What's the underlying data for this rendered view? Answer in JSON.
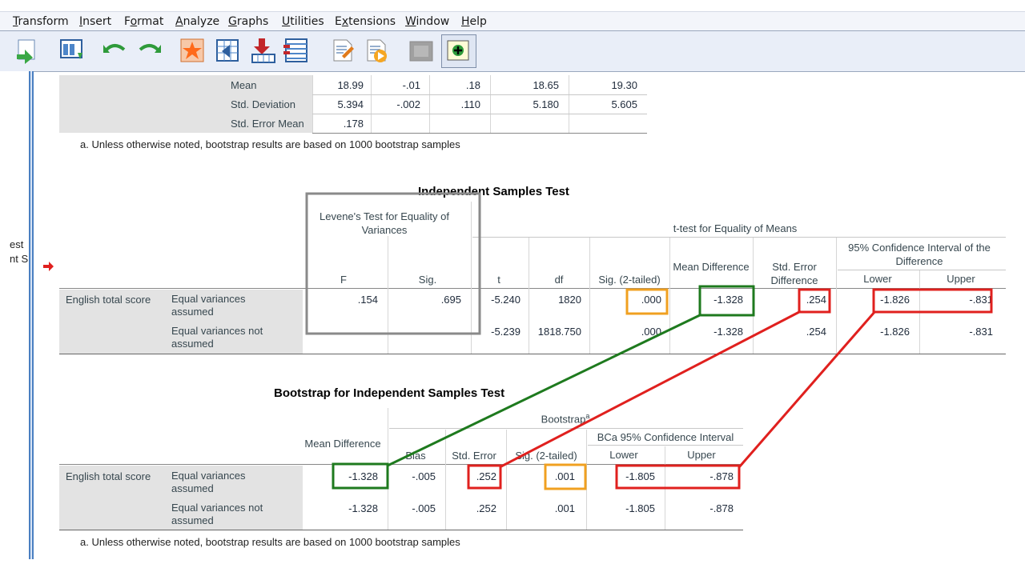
{
  "menu": [
    {
      "pre": "",
      "u": "T",
      "post": "ransform"
    },
    {
      "pre": "",
      "u": "I",
      "post": "nsert"
    },
    {
      "pre": "F",
      "u": "o",
      "post": "rmat"
    },
    {
      "pre": "",
      "u": "A",
      "post": "nalyze"
    },
    {
      "pre": "",
      "u": "G",
      "post": "raphs"
    },
    {
      "pre": "",
      "u": "U",
      "post": "tilities"
    },
    {
      "pre": "E",
      "u": "x",
      "post": "tensions"
    },
    {
      "pre": "",
      "u": "W",
      "post": "indow"
    },
    {
      "pre": "",
      "u": "H",
      "post": "elp"
    }
  ],
  "toolbar_icons": [
    "export-icon",
    "data-editor-icon",
    "undo-icon",
    "redo-icon",
    "star-icon",
    "goto-case-icon",
    "insert-variable-icon",
    "variables-icon",
    "edit-output-icon",
    "run-script-icon",
    "disabled-output-icon",
    "show-all-icon"
  ],
  "nav": {
    "frag1": "est",
    "frag2": "nt S"
  },
  "desc": {
    "rows": [
      {
        "label": "Mean",
        "stat": "18.99",
        "bias": "-.01",
        "se": ".18",
        "lower": "18.65",
        "upper": "19.30"
      },
      {
        "label": "Std. Deviation",
        "stat": "5.394",
        "bias": "-.002",
        "se": ".110",
        "lower": "5.180",
        "upper": "5.605"
      },
      {
        "label": "Std. Error Mean",
        "stat": ".178",
        "bias": "",
        "se": "",
        "lower": "",
        "upper": ""
      }
    ],
    "note": "a. Unless otherwise noted, bootstrap results are based on 1000 bootstrap samples"
  },
  "ist": {
    "title": "Independent Samples Test",
    "levene_header": "Levene's Test for Equality of Variances",
    "ttest_header": "t-test for Equality of Means",
    "ci_header": "95% Confidence Interval of the Difference",
    "cols": {
      "f": "F",
      "sig": "Sig.",
      "t": "t",
      "df": "df",
      "sig2": "Sig. (2-tailed)",
      "md": "Mean Difference",
      "sed": "Std. Error Difference",
      "lower": "Lower",
      "upper": "Upper"
    },
    "variable": "English total score",
    "rows": [
      {
        "label": "Equal variances assumed",
        "f": ".154",
        "sig": ".695",
        "t": "-5.240",
        "df": "1820",
        "sig2": ".000",
        "md": "-1.328",
        "sed": ".254",
        "lower": "-1.826",
        "upper": "-.831"
      },
      {
        "label": "Equal variances not assumed",
        "f": "",
        "sig": "",
        "t": "-5.239",
        "df": "1818.750",
        "sig2": ".000",
        "md": "-1.328",
        "sed": ".254",
        "lower": "-1.826",
        "upper": "-.831"
      }
    ]
  },
  "boot": {
    "title": "Bootstrap for Independent Samples Test",
    "header": "Bootstrap",
    "sup": "a",
    "ci_header": "BCa 95% Confidence Interval",
    "cols": {
      "md": "Mean Difference",
      "bias": "Bias",
      "se": "Std. Error",
      "sig2": "Sig. (2-tailed)",
      "lower": "Lower",
      "upper": "Upper"
    },
    "variable": "English total score",
    "rows": [
      {
        "label": "Equal variances assumed",
        "md": "-1.328",
        "bias": "-.005",
        "se": ".252",
        "sig2": ".001",
        "lower": "-1.805",
        "upper": "-.878"
      },
      {
        "label": "Equal variances not assumed",
        "md": "-1.328",
        "bias": "-.005",
        "se": ".252",
        "sig2": ".001",
        "lower": "-1.805",
        "upper": "-.878"
      }
    ],
    "note": "a. Unless otherwise noted, bootstrap results are based on 1000 bootstrap samples"
  },
  "colors": {
    "green": "#1e7a1e",
    "red": "#e0201e",
    "orange": "#f0a020",
    "gray": "#8a8a8a"
  }
}
